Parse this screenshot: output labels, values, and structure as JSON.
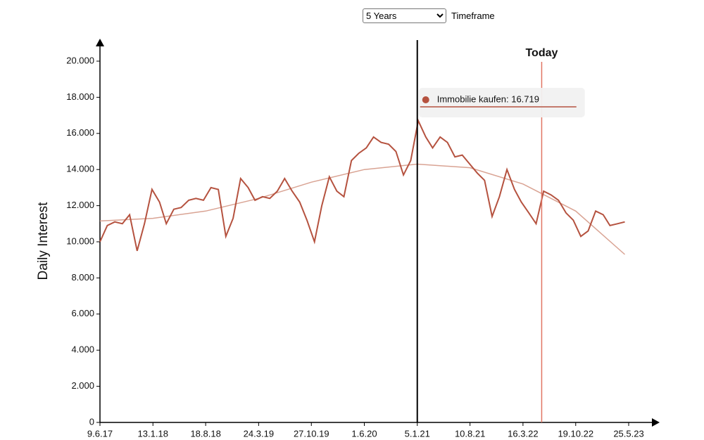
{
  "controls": {
    "timeframe": {
      "selected": "5 Years",
      "label": "Timeframe"
    }
  },
  "chart_data": {
    "type": "line",
    "y_label": "Daily Interest",
    "color": "#b5523f",
    "x": [
      "9.6.17",
      "9.7.17",
      "9.8.17",
      "9.9.17",
      "9.10.17",
      "9.11.17",
      "9.12.17",
      "9.1.18",
      "9.2.18",
      "9.3.18",
      "9.4.18",
      "9.5.18",
      "9.6.18",
      "9.7.18",
      "9.8.18",
      "9.9.18",
      "9.10.18",
      "9.11.18",
      "9.12.18",
      "9.1.19",
      "9.2.19",
      "9.3.19",
      "9.4.19",
      "9.5.19",
      "9.6.19",
      "9.7.19",
      "9.8.19",
      "9.9.19",
      "9.10.19",
      "9.11.19",
      "9.12.19",
      "9.1.20",
      "9.2.20",
      "9.3.20",
      "9.4.20",
      "9.5.20",
      "9.6.20",
      "9.7.20",
      "9.8.20",
      "9.9.20",
      "9.10.20",
      "9.11.20",
      "9.12.20",
      "9.1.21",
      "9.2.21",
      "9.3.21",
      "9.4.21",
      "9.5.21",
      "9.6.21",
      "9.7.21",
      "9.8.21",
      "9.9.21",
      "9.10.21",
      "9.11.21",
      "9.12.21",
      "9.1.22",
      "9.2.22",
      "9.3.22",
      "9.4.22",
      "9.5.22",
      "9.6.22",
      "9.7.22",
      "9.8.22",
      "9.9.22",
      "9.10.22",
      "9.11.22",
      "9.12.22",
      "9.1.23",
      "9.2.23",
      "9.3.23",
      "9.4.23",
      "9.5.23"
    ],
    "values": [
      10000,
      10900,
      11100,
      11000,
      11500,
      9500,
      11000,
      12900,
      12200,
      11000,
      11800,
      11900,
      12300,
      12400,
      12300,
      13000,
      12900,
      10300,
      11300,
      13500,
      13000,
      12300,
      12500,
      12400,
      12800,
      13500,
      12800,
      12200,
      11200,
      10000,
      12000,
      13600,
      12800,
      12500,
      14500,
      14900,
      15200,
      15800,
      15500,
      15400,
      15000,
      13700,
      14500,
      16700,
      15800,
      15200,
      15800,
      15500,
      14700,
      14800,
      14300,
      13800,
      13400,
      11400,
      12500,
      14000,
      12900,
      12200,
      11600,
      11000,
      12800,
      12600,
      12300,
      11600,
      11200,
      10300,
      10600,
      11700,
      11500,
      10900,
      11000,
      11100
    ],
    "trend": {
      "color": "#d9a393",
      "x": [
        "9.6.17",
        "13.1.18",
        "18.8.18",
        "24.3.19",
        "27.10.19",
        "1.6.20",
        "5.1.21",
        "10.8.21",
        "16.3.22",
        "19.10.22",
        "9.5.23"
      ],
      "values": [
        11150,
        11300,
        11700,
        12400,
        13300,
        14000,
        14300,
        14100,
        13200,
        11700,
        9300
      ]
    },
    "xlim": [
      "9.6.17",
      "25.5.23"
    ],
    "xticks": [
      "9.6.17",
      "13.1.18",
      "18.8.18",
      "24.3.19",
      "27.10.19",
      "1.6.20",
      "5.1.21",
      "10.8.21",
      "16.3.22",
      "19.10.22",
      "25.5.23"
    ],
    "ylim": [
      0,
      20000
    ],
    "yticks": [
      0,
      {
        "value": 2000,
        "label": "2.000"
      },
      {
        "value": 4000,
        "label": "4.000"
      },
      {
        "value": 6000,
        "label": "6.000"
      },
      {
        "value": 8000,
        "label": "8.000"
      },
      {
        "value": 10000,
        "label": "10.000"
      },
      {
        "value": 12000,
        "label": "12.000"
      },
      {
        "value": 14000,
        "label": "14.000"
      },
      {
        "value": 16000,
        "label": "16.000"
      },
      {
        "value": 18000,
        "label": "18.000"
      },
      {
        "value": 20000,
        "label": "20.000"
      }
    ],
    "today": {
      "label": "Today",
      "x": "1.6.22",
      "color": "#e07563"
    },
    "tooltip": {
      "x": "5.1.21",
      "value": 16719,
      "label": "Immobilie kaufen: 16.719"
    }
  }
}
